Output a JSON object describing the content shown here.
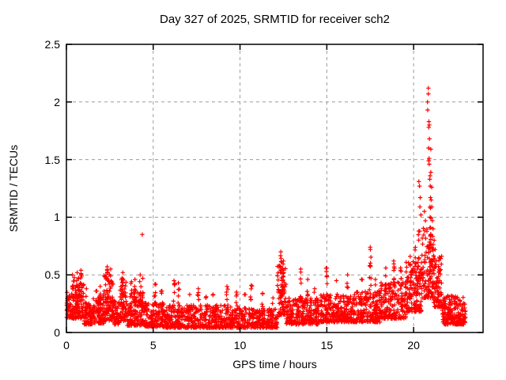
{
  "chart_data": {
    "type": "scatter",
    "title": "Day 327 of 2025, SRMTID for receiver sch2",
    "xlabel": "GPS time / hours",
    "ylabel": "SRMTID / TECUs",
    "xlim": [
      0,
      24
    ],
    "ylim": [
      0,
      2.5
    ],
    "xticks": [
      {
        "v": 0,
        "label": "0"
      },
      {
        "v": 5,
        "label": "5"
      },
      {
        "v": 10,
        "label": "10"
      },
      {
        "v": 15,
        "label": "15"
      },
      {
        "v": 20,
        "label": "20"
      }
    ],
    "yticks": [
      {
        "v": 0,
        "label": "0"
      },
      {
        "v": 0.5,
        "label": "0.5"
      },
      {
        "v": 1,
        "label": "1"
      },
      {
        "v": 1.5,
        "label": "1.5"
      },
      {
        "v": 2,
        "label": "2"
      },
      {
        "v": 2.5,
        "label": "2.5"
      }
    ],
    "grid": true,
    "legend": "none",
    "marker": {
      "symbol": "plus",
      "color": "#ff0000",
      "size": 5.5
    },
    "grid_color": "#9b9b9b",
    "axis_color": "#000000",
    "series_name": "SRMTID",
    "data_x_range": [
      0,
      23.0
    ],
    "scatter_profile": {
      "seed": 42,
      "segments": [
        [
          0.0,
          0.3,
          40,
          0.13,
          0.35
        ],
        [
          0.3,
          1.0,
          110,
          0.12,
          0.48
        ],
        [
          1.0,
          1.55,
          80,
          0.07,
          0.26
        ],
        [
          1.55,
          2.15,
          85,
          0.08,
          0.33
        ],
        [
          2.15,
          2.7,
          80,
          0.1,
          0.52
        ],
        [
          2.7,
          3.05,
          50,
          0.07,
          0.28
        ],
        [
          3.05,
          3.45,
          60,
          0.1,
          0.46
        ],
        [
          3.45,
          4.45,
          140,
          0.06,
          0.35
        ],
        [
          4.45,
          5.6,
          150,
          0.05,
          0.26
        ],
        [
          5.6,
          10.0,
          480,
          0.04,
          0.24
        ],
        [
          10.0,
          12.15,
          230,
          0.04,
          0.21
        ],
        [
          12.15,
          12.65,
          70,
          0.15,
          0.6
        ],
        [
          12.65,
          14.6,
          230,
          0.07,
          0.3
        ],
        [
          14.6,
          16.6,
          240,
          0.09,
          0.33
        ],
        [
          16.6,
          18.1,
          180,
          0.09,
          0.36
        ],
        [
          18.1,
          19.55,
          175,
          0.12,
          0.44
        ],
        [
          19.55,
          20.45,
          135,
          0.18,
          0.62
        ],
        [
          20.45,
          21.15,
          115,
          0.3,
          0.92
        ],
        [
          21.15,
          21.65,
          75,
          0.22,
          0.68
        ],
        [
          21.65,
          23.0,
          210,
          0.07,
          0.32
        ]
      ],
      "spikes": [
        [
          0.35,
          0.5,
          7
        ],
        [
          0.62,
          0.52,
          7
        ],
        [
          0.84,
          0.54,
          8
        ],
        [
          1.15,
          0.38,
          5
        ],
        [
          1.75,
          0.36,
          5
        ],
        [
          1.95,
          0.4,
          6
        ],
        [
          2.35,
          0.57,
          9
        ],
        [
          2.55,
          0.55,
          7
        ],
        [
          3.25,
          0.52,
          8
        ],
        [
          3.75,
          0.44,
          6
        ],
        [
          3.95,
          0.46,
          6
        ],
        [
          4.25,
          0.5,
          8
        ],
        [
          4.4,
          0.47,
          6
        ],
        [
          5.1,
          0.42,
          6
        ],
        [
          5.5,
          0.36,
          5
        ],
        [
          6.2,
          0.45,
          7
        ],
        [
          6.45,
          0.43,
          6
        ],
        [
          7.1,
          0.33,
          5
        ],
        [
          7.6,
          0.38,
          6
        ],
        [
          8.05,
          0.31,
          5
        ],
        [
          8.45,
          0.33,
          5
        ],
        [
          9.25,
          0.4,
          7
        ],
        [
          9.8,
          0.35,
          5
        ],
        [
          10.3,
          0.33,
          5
        ],
        [
          10.65,
          0.41,
          7
        ],
        [
          11.3,
          0.34,
          5
        ],
        [
          11.9,
          0.3,
          5
        ],
        [
          12.35,
          0.7,
          12
        ],
        [
          12.5,
          0.62,
          8
        ],
        [
          13.5,
          0.55,
          9
        ],
        [
          13.9,
          0.46,
          6
        ],
        [
          14.3,
          0.38,
          5
        ],
        [
          15.0,
          0.56,
          9
        ],
        [
          15.55,
          0.45,
          6
        ],
        [
          16.2,
          0.5,
          7
        ],
        [
          17.0,
          0.46,
          6
        ],
        [
          17.5,
          0.74,
          12
        ],
        [
          17.8,
          0.46,
          5
        ],
        [
          18.4,
          0.56,
          8
        ],
        [
          18.85,
          0.62,
          8
        ],
        [
          19.25,
          0.56,
          7
        ],
        [
          19.8,
          0.66,
          8
        ],
        [
          20.1,
          0.74,
          8
        ],
        [
          20.3,
          0.88,
          8
        ],
        [
          20.95,
          1.0,
          10
        ],
        [
          21.3,
          0.62,
          6
        ],
        [
          21.45,
          0.52,
          5
        ]
      ],
      "outliers": [
        [
          4.37,
          0.85
        ],
        [
          20.3,
          1.31
        ],
        [
          20.34,
          1.27
        ],
        [
          20.38,
          1.17
        ],
        [
          20.36,
          1.09
        ],
        [
          20.42,
          1.02
        ],
        [
          20.62,
          1.05
        ],
        [
          20.68,
          0.97
        ],
        [
          20.8,
          2.0
        ],
        [
          20.85,
          2.12
        ],
        [
          20.85,
          2.07
        ],
        [
          20.81,
          1.93
        ],
        [
          20.88,
          1.83
        ],
        [
          20.9,
          1.8
        ],
        [
          20.87,
          1.78
        ],
        [
          20.91,
          1.68
        ],
        [
          20.86,
          1.6
        ],
        [
          20.99,
          1.59
        ],
        [
          20.89,
          1.51
        ],
        [
          20.87,
          1.49
        ],
        [
          20.9,
          1.46
        ],
        [
          20.99,
          1.39
        ],
        [
          20.95,
          1.36
        ],
        [
          20.93,
          1.33
        ],
        [
          20.96,
          1.27
        ],
        [
          21.04,
          1.26
        ],
        [
          20.97,
          1.17
        ],
        [
          21.01,
          1.15
        ],
        [
          20.94,
          1.09
        ],
        [
          21.05,
          1.09
        ],
        [
          20.97,
          1.08
        ],
        [
          21.08,
          0.97
        ],
        [
          21.12,
          0.9
        ],
        [
          21.18,
          0.8
        ],
        [
          21.24,
          0.72
        ]
      ]
    }
  }
}
